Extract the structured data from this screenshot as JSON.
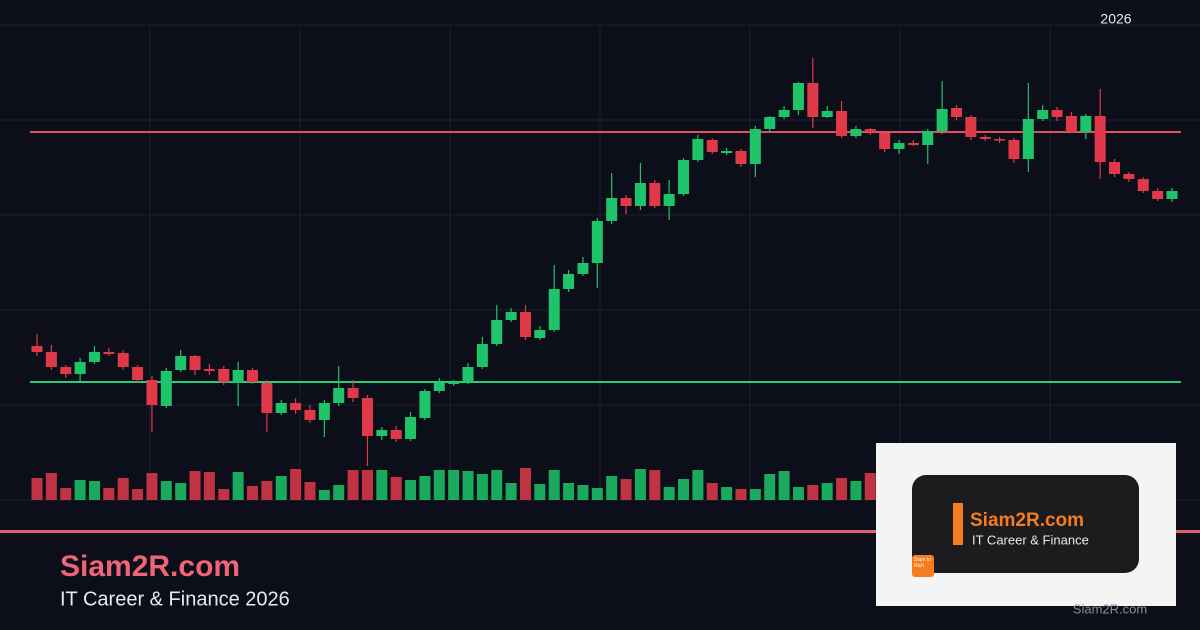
{
  "chart_data": {
    "type": "candlestick",
    "ylim": [
      0,
      475
    ],
    "up_color": "#1fc46a",
    "down_color": "#e03a4a",
    "open": [
      154,
      148,
      133,
      126,
      138,
      148,
      147,
      133,
      120,
      94,
      130,
      144,
      131,
      131,
      118,
      130,
      117,
      87,
      97,
      90,
      80,
      97,
      112,
      102,
      64,
      70,
      61,
      82,
      109,
      116,
      118,
      133,
      156,
      180,
      188,
      162,
      170,
      211,
      226,
      237,
      279,
      302,
      294,
      317,
      294,
      306,
      340,
      360,
      347,
      349,
      336,
      371,
      383,
      390,
      417,
      383,
      389,
      364,
      371,
      367,
      351,
      357,
      355,
      369,
      392,
      383,
      363,
      361,
      360,
      341,
      381,
      390,
      384,
      368,
      384,
      338,
      326,
      321,
      309,
      301
    ],
    "high": [
      166,
      155,
      135,
      142,
      154,
      152,
      150,
      135,
      124,
      132,
      150,
      145,
      136,
      134,
      138,
      132,
      120,
      100,
      102,
      95,
      100,
      134,
      120,
      105,
      73,
      74,
      88,
      111,
      122,
      120,
      137,
      163,
      195,
      192,
      195,
      174,
      235,
      230,
      243,
      282,
      327,
      305,
      337,
      320,
      320,
      342,
      365,
      362,
      352,
      351,
      374,
      384,
      394,
      418,
      442,
      394,
      399,
      374,
      372,
      369,
      360,
      360,
      371,
      419,
      395,
      385,
      365,
      363,
      362,
      417,
      395,
      393,
      388,
      386,
      411,
      341,
      328,
      323,
      312,
      312
    ],
    "low": [
      144,
      130,
      122,
      117,
      136,
      144,
      130,
      117,
      68,
      92,
      128,
      125,
      125,
      115,
      94,
      116,
      68,
      85,
      86,
      77,
      63,
      94,
      98,
      34,
      60,
      58,
      59,
      80,
      107,
      114,
      116,
      131,
      154,
      178,
      160,
      160,
      168,
      208,
      224,
      212,
      276,
      286,
      290,
      292,
      280,
      304,
      338,
      346,
      345,
      333,
      323,
      368,
      381,
      385,
      372,
      382,
      362,
      362,
      365,
      348,
      346,
      354,
      336,
      366,
      380,
      360,
      359,
      357,
      337,
      328,
      379,
      379,
      367,
      361,
      321,
      323,
      318,
      307,
      299,
      298
    ],
    "close": [
      148,
      133,
      126,
      138,
      148,
      146,
      133,
      120,
      95,
      129,
      144,
      130,
      129,
      118,
      130,
      118,
      87,
      97,
      90,
      80,
      97,
      112,
      102,
      64,
      70,
      61,
      83,
      109,
      117,
      118,
      133,
      156,
      180,
      188,
      163,
      170,
      211,
      226,
      237,
      279,
      302,
      294,
      317,
      294,
      306,
      340,
      361,
      348,
      349,
      336,
      371,
      383,
      390,
      417,
      383,
      389,
      364,
      371,
      368,
      351,
      357,
      355,
      369,
      391,
      383,
      363,
      361,
      360,
      341,
      381,
      390,
      383,
      368,
      384,
      338,
      326,
      321,
      309,
      301,
      309
    ],
    "volume": [
      22,
      27,
      12,
      20,
      19,
      12,
      22,
      11,
      27,
      19,
      17,
      29,
      28,
      11,
      28,
      14,
      19,
      24,
      31,
      18,
      10,
      15,
      30,
      30,
      30,
      23,
      20,
      24,
      30,
      30,
      29,
      26,
      30,
      17,
      32,
      16,
      30,
      17,
      15,
      12,
      24,
      21,
      31,
      30,
      13,
      21,
      30,
      17,
      13,
      11,
      11,
      26,
      29,
      13,
      15,
      17,
      22,
      19,
      27,
      null,
      null,
      null,
      null,
      null,
      null,
      null,
      null,
      null,
      null,
      null,
      null,
      null,
      null,
      null,
      null,
      null,
      null,
      null,
      null,
      null
    ],
    "hlines": [
      {
        "value": 368,
        "color": "#e0505e"
      },
      {
        "value": 118,
        "color": "#2ecc7a"
      }
    ],
    "year": "2026"
  },
  "branding": {
    "title": "Siam2R.com",
    "subtitle": "IT Career & Finance 2026",
    "card_title": "Siam2R.com",
    "card_subtitle": "IT Career & Finance",
    "icon_text": "Siam to Rich",
    "watermark": "Siam2R.com"
  }
}
